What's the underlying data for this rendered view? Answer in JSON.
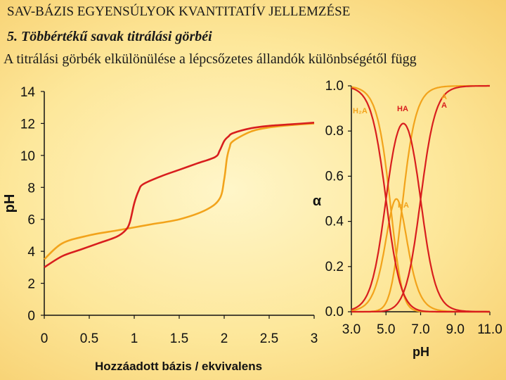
{
  "header": {
    "title": "SAV-BÁZIS EGYENSÚLYOK KVANTITATÍV JELLEMZÉSE",
    "subtitle": "5. Többértékű savak titrálási görbéi",
    "description": "A titrálási görbék elkülönülése a lépcsőzetes állandók különbségétől függ"
  },
  "colors": {
    "red": "#d81e1e",
    "orange": "#f2a31b",
    "axis": "#111111"
  },
  "chart_data": [
    {
      "type": "line",
      "xlabel": "Hozzáadott bázis / ekvivalens",
      "ylabel": "pH",
      "xlim": [
        0,
        3
      ],
      "ylim": [
        0,
        14
      ],
      "xticks": [
        "0",
        "0.5",
        "1",
        "1.5",
        "2",
        "2.5",
        "3"
      ],
      "yticks": [
        "0",
        "2",
        "4",
        "6",
        "8",
        "10",
        "12",
        "14"
      ],
      "series": [
        {
          "color": "red",
          "x": [
            0,
            0.2,
            0.4,
            0.6,
            0.8,
            0.9,
            0.95,
            1.0,
            1.05,
            1.1,
            1.3,
            1.5,
            1.7,
            1.9,
            1.95,
            2.0,
            2.05,
            2.1,
            2.3,
            2.5,
            2.75,
            3.0
          ],
          "y": [
            3.0,
            3.7,
            4.1,
            4.5,
            4.9,
            5.3,
            5.8,
            7.0,
            7.8,
            8.2,
            8.7,
            9.1,
            9.5,
            9.9,
            10.3,
            10.9,
            11.2,
            11.4,
            11.7,
            11.85,
            11.95,
            12.05
          ]
        },
        {
          "color": "orange",
          "x": [
            0,
            0.2,
            0.5,
            0.8,
            1.0,
            1.2,
            1.5,
            1.8,
            1.95,
            2.0,
            2.03,
            2.06,
            2.1,
            2.3,
            2.5,
            2.75,
            3.0
          ],
          "y": [
            3.5,
            4.5,
            5.0,
            5.3,
            5.5,
            5.7,
            6.0,
            6.6,
            7.3,
            8.5,
            9.8,
            10.5,
            10.9,
            11.5,
            11.75,
            11.9,
            12.0
          ]
        }
      ]
    },
    {
      "type": "line",
      "xlabel": "pH",
      "ylabel": "α",
      "xlim": [
        3.0,
        11.0
      ],
      "ylim": [
        0,
        1
      ],
      "xticks": [
        "3.0",
        "5.0",
        "7.0",
        "9.0",
        "11.0"
      ],
      "yticks": [
        "0.0",
        "0.2",
        "0.4",
        "0.6",
        "0.8",
        "1.0"
      ],
      "annotations": {
        "h2a": "H₂A",
        "ha_top": "HA",
        "ha_mid": "HA",
        "a_orange": "A",
        "a_red": "A"
      },
      "series": [
        {
          "color": "red",
          "species": "H2A",
          "pKa1": 5.0,
          "pKa2": 7.0
        },
        {
          "color": "red",
          "species": "HA",
          "pKa1": 5.0,
          "pKa2": 7.0
        },
        {
          "color": "red",
          "species": "A",
          "pKa1": 5.0,
          "pKa2": 7.0
        },
        {
          "color": "orange",
          "species": "H2A",
          "pKa1": 5.3,
          "pKa2": 5.9
        },
        {
          "color": "orange",
          "species": "HA",
          "pKa1": 5.3,
          "pKa2": 5.9
        },
        {
          "color": "orange",
          "species": "A",
          "pKa1": 5.3,
          "pKa2": 5.9
        }
      ]
    }
  ]
}
